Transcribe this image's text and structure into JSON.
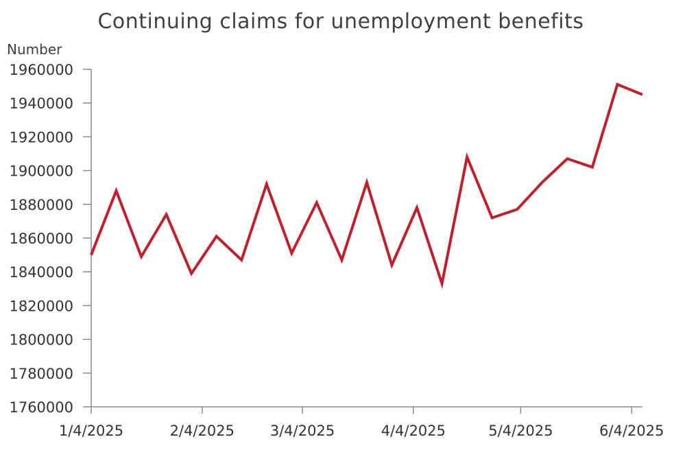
{
  "chart_data": {
    "type": "line",
    "title": "Continuing claims for unemployment benefits",
    "ylabel": "Number",
    "xlabel": "",
    "ylim": [
      1760000,
      1960000
    ],
    "yticks": [
      1760000,
      1780000,
      1800000,
      1820000,
      1840000,
      1860000,
      1880000,
      1900000,
      1920000,
      1940000,
      1960000
    ],
    "xlim": [
      "2025-01-04",
      "2025-06-07"
    ],
    "xticks": [
      {
        "date": "2025-01-04",
        "label": "1/4/2025"
      },
      {
        "date": "2025-02-04",
        "label": "2/4/2025"
      },
      {
        "date": "2025-03-04",
        "label": "3/4/2025"
      },
      {
        "date": "2025-04-04",
        "label": "4/4/2025"
      },
      {
        "date": "2025-05-04",
        "label": "5/4/2025"
      },
      {
        "date": "2025-06-04",
        "label": "6/4/2025"
      }
    ],
    "grid": false,
    "line_color": "#c0202a",
    "x": [
      "2025-01-04",
      "2025-01-11",
      "2025-01-18",
      "2025-01-25",
      "2025-02-01",
      "2025-02-08",
      "2025-02-15",
      "2025-02-22",
      "2025-03-01",
      "2025-03-08",
      "2025-03-15",
      "2025-03-22",
      "2025-03-29",
      "2025-04-05",
      "2025-04-12",
      "2025-04-19",
      "2025-04-26",
      "2025-05-03",
      "2025-05-10",
      "2025-05-17",
      "2025-05-24",
      "2025-05-31",
      "2025-06-07"
    ],
    "values": [
      1850000,
      1888000,
      1849000,
      1874000,
      1839000,
      1861000,
      1847000,
      1892000,
      1851000,
      1881000,
      1847000,
      1893000,
      1844000,
      1878000,
      1833000,
      1908000,
      1872000,
      1877000,
      1893000,
      1907000,
      1902000,
      1951000,
      1945000
    ]
  }
}
